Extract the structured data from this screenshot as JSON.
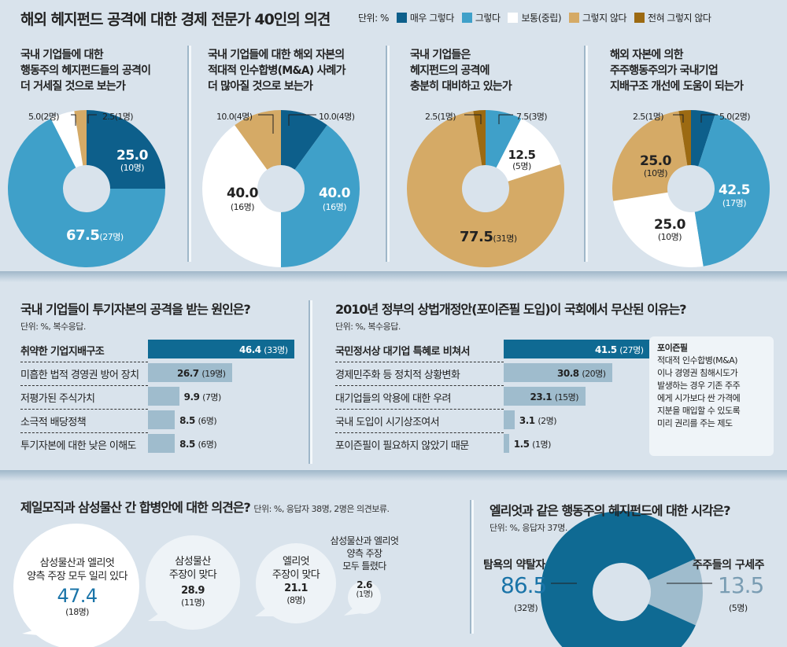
{
  "header": {
    "title": "해외 헤지펀드 공격에 대한 경제 전문가 40인의 의견",
    "unit": "단위: %",
    "legend": [
      {
        "label": "매우 그렇다",
        "color": "#0d5f8b"
      },
      {
        "label": "그렇다",
        "color": "#3fa0c9"
      },
      {
        "label": "보통(중립)",
        "color": "#ffffff"
      },
      {
        "label": "그렇지 않다",
        "color": "#d5aa66"
      },
      {
        "label": "전혀 그렇지 않다",
        "color": "#9c6a12"
      }
    ]
  },
  "chart_data": [
    {
      "type": "pie",
      "title": "국내 기업들에 대한 행동주의 헤지펀드들의 공격이 더 거세질 것으로 보는가",
      "title_lines": [
        "국내 기업들에 대한",
        "행동주의 헤지펀드들의 공격이",
        "더 거세질 것으로 보는가"
      ],
      "slices": [
        {
          "category": "매우 그렇다",
          "value": 25.0,
          "count": "10명",
          "label": "25.0",
          "sub": "(10명)"
        },
        {
          "category": "그렇다",
          "value": 67.5,
          "count": "27명",
          "label": "67.5",
          "sub": "(27명)"
        },
        {
          "category": "보통(중립)",
          "value": 5.0,
          "count": "2명",
          "label": "5.0(2명)"
        },
        {
          "category": "그렇지 않다",
          "value": 2.5,
          "count": "1명",
          "label": "2.5(1명)"
        }
      ]
    },
    {
      "type": "pie",
      "title": "국내 기업들에 대한 해외 자본의 적대적 인수합병(M&A) 사례가 더 많아질 것으로 보는가",
      "title_lines": [
        "국내 기업들에 대한 해외 자본의",
        "적대적 인수합병(M&A) 사례가",
        "더 많아질 것으로 보는가"
      ],
      "slices": [
        {
          "category": "매우 그렇다",
          "value": 10.0,
          "count": "4명",
          "label": "10.0(4명)"
        },
        {
          "category": "그렇다",
          "value": 40.0,
          "count": "16명",
          "label": "40.0",
          "sub": "(16명)"
        },
        {
          "category": "보통(중립)",
          "value": 40.0,
          "count": "16명",
          "label": "40.0",
          "sub": "(16명)"
        },
        {
          "category": "그렇지 않다",
          "value": 10.0,
          "count": "4명",
          "label": "10.0(4명)"
        }
      ]
    },
    {
      "type": "pie",
      "title": "국내 기업들은 헤지펀드의 공격에 충분히 대비하고 있는가",
      "title_lines": [
        "국내 기업들은",
        "헤지펀드의 공격에",
        "충분히 대비하고 있는가"
      ],
      "slices": [
        {
          "category": "그렇다",
          "value": 7.5,
          "count": "3명",
          "label": "7.5(3명)"
        },
        {
          "category": "보통(중립)",
          "value": 12.5,
          "count": "5명",
          "label": "12.5",
          "sub": "(5명)"
        },
        {
          "category": "그렇지 않다",
          "value": 77.5,
          "count": "31명",
          "label": "77.5",
          "sub": "(31명)"
        },
        {
          "category": "전혀 그렇지 않다",
          "value": 2.5,
          "count": "1명",
          "label": "2.5(1명)"
        }
      ]
    },
    {
      "type": "pie",
      "title": "해외 자본에 의한 주주행동주의가 국내기업 지배구조 개선에 도움이 되는가",
      "title_lines": [
        "해외 자본에 의한",
        "주주행동주의가 국내기업",
        "지배구조 개선에 도움이 되는가"
      ],
      "slices": [
        {
          "category": "매우 그렇다",
          "value": 5.0,
          "count": "2명",
          "label": "5.0(2명)"
        },
        {
          "category": "그렇다",
          "value": 42.5,
          "count": "17명",
          "label": "42.5",
          "sub": "(17명)"
        },
        {
          "category": "보통(중립)",
          "value": 25.0,
          "count": "10명",
          "label": "25.0",
          "sub": "(10명)"
        },
        {
          "category": "그렇지 않다",
          "value": 25.0,
          "count": "10명",
          "label": "25.0",
          "sub": "(10명)"
        },
        {
          "category": "전혀 그렇지 않다",
          "value": 2.5,
          "count": "1명",
          "label": "2.5(1명)"
        }
      ]
    },
    {
      "type": "bar",
      "title": "국내 기업들이 투기자본의 공격을 받는 원인은?",
      "unit": "단위: %, 복수응답.",
      "categories": [
        "취약한 기업지배구조",
        "미흡한 법적 경영권 방어 장치",
        "저평가된 주식가치",
        "소극적 배당정책",
        "투기자본에 대한 낮은 이해도"
      ],
      "values": [
        46.4,
        26.7,
        9.9,
        8.5,
        8.5
      ],
      "counts": [
        "(33명)",
        "(19명)",
        "(7명)",
        "(6명)",
        "(6명)"
      ],
      "value_labels": [
        "46.4",
        "26.7",
        "9.9",
        "8.5",
        "8.5"
      ]
    },
    {
      "type": "bar",
      "title": "2010년 정부의 상법개정안(포이즌필 도입)이 국회에서 무산된 이유는?",
      "unit": "단위: %, 복수응답.",
      "categories": [
        "국민정서상 대기업 특혜로 비쳐서",
        "경제민주화 등 정치적 상황변화",
        "대기업들의 악용에 대한 우려",
        "국내 도입이 시기상조여서",
        "포이즌필이 필요하지 않았기 때문"
      ],
      "values": [
        41.5,
        30.8,
        23.1,
        3.1,
        1.5
      ],
      "counts": [
        "(27명)",
        "(20명)",
        "(15명)",
        "(2명)",
        "(1명)"
      ],
      "value_labels": [
        "41.5",
        "30.8",
        "23.1",
        "3.1",
        "1.5"
      ]
    },
    {
      "type": "bubble",
      "title": "제일모직과 삼성물산 간 합병안에 대한 의견은?",
      "unit": "단위: %, 응답자 38명, 2명은 의견보류.",
      "items": [
        {
          "label_lines": [
            "삼성물산과 엘리엇",
            "양측 주장 모두 일리 있다"
          ],
          "value": 47.4,
          "value_label": "47.4",
          "count": "(18명)"
        },
        {
          "label_lines": [
            "삼성물산",
            "주장이 맞다"
          ],
          "value": 28.9,
          "value_label": "28.9",
          "count": "(11명)"
        },
        {
          "label_lines": [
            "엘리엇",
            "주장이 맞다"
          ],
          "value": 21.1,
          "value_label": "21.1",
          "count": "(8명)"
        },
        {
          "label_lines": [
            "삼성물산과 엘리엇",
            "양측 주장",
            "모두 틀렸다"
          ],
          "value": 2.6,
          "value_label": "2.6",
          "count": "(1명)"
        }
      ]
    },
    {
      "type": "pie",
      "title": "엘리엇과 같은 행동주의 헤지펀드에 대한 시각은?",
      "unit": "단위: %, 응답자 37명.",
      "slices": [
        {
          "category": "탐욕의 약탈자",
          "value": 86.5,
          "label": "86.5",
          "count": "(32명)",
          "color": "#0f6a93"
        },
        {
          "category": "주주들의 구세주",
          "value": 13.5,
          "label": "13.5",
          "count": "(5명)",
          "color": "#9fbccd"
        }
      ]
    }
  ],
  "note": {
    "title": "포이즌필",
    "lines": [
      "적대적 인수합병(M&A)",
      "이나 경영권 침해시도가",
      "발생하는 경우 기존 주주",
      "에게 시가보다 싼 가격에",
      "지분을 매입할 수 있도록",
      "미리 권리를 주는 제도"
    ]
  }
}
